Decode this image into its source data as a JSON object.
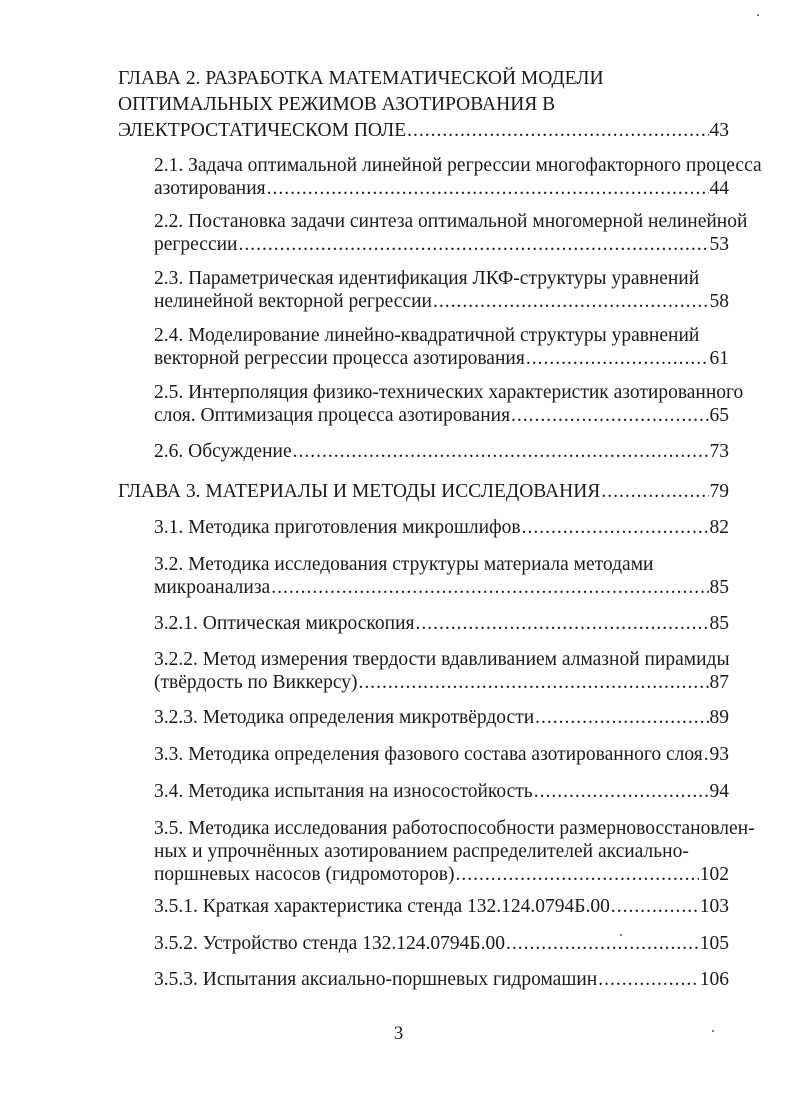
{
  "toc": [
    {
      "level": "chapter",
      "lines": [
        "ГЛАВА 2. РАЗРАБОТКА МАТЕМАТИЧЕСКОЙ МОДЕЛИ",
        "ОПТИМАЛЬНЫХ РЕЖИМОВ АЗОТИРОВАНИЯ В",
        "ЭЛЕКТРОСТАТИЧЕСКОМ ПОЛЕ"
      ],
      "page": "43"
    },
    {
      "level": "section",
      "lines": [
        "2.1. Задача оптимальной линейной регрессии многофакторного процесса",
        "азотирования"
      ],
      "page": "44"
    },
    {
      "level": "section",
      "lines": [
        "2.2. Постановка задачи синтеза оптимальной многомерной нелинейной",
        "регрессии"
      ],
      "page": "53"
    },
    {
      "level": "section",
      "lines": [
        "2.3. Параметрическая идентификация ЛКФ-структуры уравнений",
        "нелинейной векторной регрессии"
      ],
      "page": "58"
    },
    {
      "level": "section",
      "lines": [
        "2.4. Моделирование линейно-квадратичной структуры уравнений",
        "векторной регрессии процесса азотирования"
      ],
      "page": "61"
    },
    {
      "level": "section",
      "lines": [
        "2.5. Интерполяция физико-технических характеристик азотированного",
        "слоя. Оптимизация процесса азотирования"
      ],
      "page": "65"
    },
    {
      "level": "section",
      "lines": [
        "2.6. Обсуждение"
      ],
      "page": "73"
    },
    {
      "level": "chapter",
      "lines": [
        "ГЛАВА 3. МАТЕРИАЛЫ И МЕТОДЫ ИССЛЕДОВАНИЯ"
      ],
      "page": "79"
    },
    {
      "level": "section",
      "lines": [
        "3.1. Методика приготовления микрошлифов"
      ],
      "page": "82"
    },
    {
      "level": "section",
      "lines": [
        "3.2. Методика исследования структуры материала методами",
        "микроанализа"
      ],
      "page": "85"
    },
    {
      "level": "section",
      "lines": [
        "3.2.1. Оптическая микроскопия"
      ],
      "page": "85"
    },
    {
      "level": "section",
      "lines": [
        "3.2.2. Метод измерения твердости вдавливанием алмазной пирамиды",
        "(твёрдость по Виккерсу)"
      ],
      "page": "87"
    },
    {
      "level": "section",
      "lines": [
        "3.2.3. Методика определения микротвёрдости"
      ],
      "page": "89"
    },
    {
      "level": "section",
      "lines": [
        "3.3. Методика определения фазового состава азотированного слоя"
      ],
      "page": "93"
    },
    {
      "level": "section",
      "lines": [
        "3.4. Методика испытания на износостойкость"
      ],
      "page": "94"
    },
    {
      "level": "section",
      "lines": [
        "3.5. Методика исследования работоспособности размерновосстановлен-",
        "ных и упрочнённых азотированием распределителей аксиально-",
        "поршневых насосов (гидромоторов)"
      ],
      "page": "102"
    },
    {
      "level": "section",
      "lines": [
        "3.5.1. Краткая характеристика стенда 132.124.0794Б.00"
      ],
      "page": "103"
    },
    {
      "level": "section",
      "lines": [
        "3.5.2. Устройство стенда 132.124.0794Б.00"
      ],
      "page": "105"
    },
    {
      "level": "section",
      "lines": [
        "3.5.3. Испытания аксиально-поршневых гидромашин"
      ],
      "page": "106"
    }
  ],
  "page_number": "3"
}
